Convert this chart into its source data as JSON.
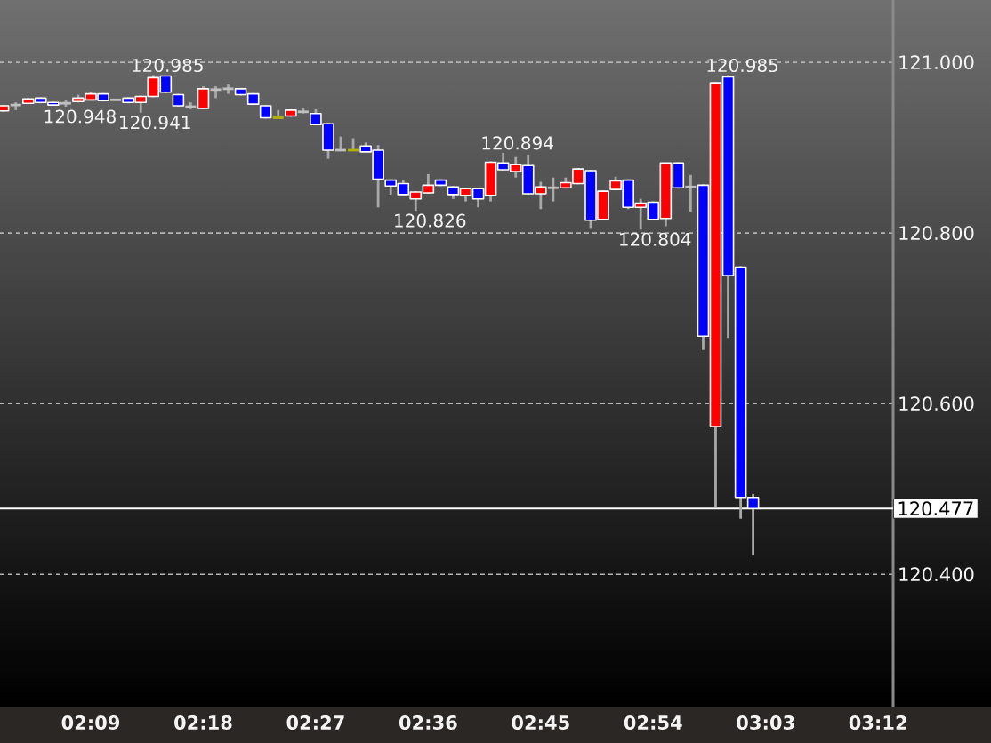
{
  "chart_data": {
    "type": "candlestick",
    "x": [
      2.0333,
      2.05,
      2.0667,
      2.0833,
      2.1,
      2.1167,
      2.1333,
      2.15,
      2.1667,
      2.1833,
      2.2,
      2.2167,
      2.2333,
      2.25,
      2.2667,
      2.2833,
      2.3,
      2.3167,
      2.3333,
      2.35,
      2.3667,
      2.3833,
      2.4,
      2.4167,
      2.4333,
      2.45,
      2.4667,
      2.4833,
      2.5,
      2.5167,
      2.5333,
      2.55,
      2.5667,
      2.5833,
      2.6,
      2.6167,
      2.6333,
      2.65,
      2.6667,
      2.6833,
      2.7,
      2.7167,
      2.7333,
      2.75,
      2.7667,
      2.7833,
      2.8,
      2.8167,
      2.8333,
      2.85,
      2.8667,
      2.8833,
      2.9,
      2.9167,
      2.9333,
      2.95,
      2.9667,
      2.9833,
      3.0,
      3.0167,
      3.0333
    ],
    "ohlc": [
      [
        120.943,
        120.95,
        120.942,
        120.949
      ],
      [
        120.95,
        120.953,
        120.944,
        120.95
      ],
      [
        120.952,
        120.958,
        120.951,
        120.957
      ],
      [
        120.958,
        120.959,
        120.952,
        120.953
      ],
      [
        120.953,
        120.954,
        120.949,
        120.95
      ],
      [
        120.952,
        120.956,
        120.948,
        120.952
      ],
      [
        120.954,
        120.962,
        120.953,
        120.958
      ],
      [
        120.956,
        120.965,
        120.955,
        120.963
      ],
      [
        120.963,
        120.964,
        120.954,
        120.955
      ],
      [
        120.956,
        120.957,
        120.955,
        120.956
      ],
      [
        120.958,
        120.959,
        120.952,
        120.953
      ],
      [
        120.953,
        120.961,
        120.941,
        120.96
      ],
      [
        120.96,
        120.985,
        120.959,
        120.982
      ],
      [
        120.984,
        120.984,
        120.964,
        120.965
      ],
      [
        120.962,
        120.963,
        120.948,
        120.949
      ],
      [
        120.948,
        120.953,
        120.945,
        120.948
      ],
      [
        120.946,
        120.972,
        120.945,
        120.969
      ],
      [
        120.968,
        120.972,
        120.958,
        120.968
      ],
      [
        120.969,
        120.974,
        120.963,
        120.969
      ],
      [
        120.969,
        120.97,
        120.961,
        120.962
      ],
      [
        120.963,
        120.964,
        120.95,
        120.951
      ],
      [
        120.949,
        120.95,
        120.934,
        120.935
      ],
      [
        120.935,
        120.944,
        120.935,
        120.935
      ],
      [
        120.937,
        120.945,
        120.936,
        120.944
      ],
      [
        120.942,
        120.946,
        120.94,
        120.942
      ],
      [
        120.94,
        120.945,
        120.926,
        120.927
      ],
      [
        120.928,
        120.929,
        120.887,
        120.897
      ],
      [
        120.897,
        120.913,
        120.896,
        120.897
      ],
      [
        120.897,
        120.911,
        120.897,
        120.897
      ],
      [
        120.902,
        120.906,
        120.895,
        120.895
      ],
      [
        120.897,
        120.903,
        120.83,
        120.863
      ],
      [
        120.862,
        120.863,
        120.845,
        120.855
      ],
      [
        120.858,
        120.862,
        120.844,
        120.845
      ],
      [
        120.84,
        120.849,
        120.826,
        120.848
      ],
      [
        120.847,
        120.869,
        120.846,
        120.856
      ],
      [
        120.862,
        120.863,
        120.855,
        120.856
      ],
      [
        120.854,
        120.855,
        120.84,
        120.845
      ],
      [
        120.844,
        120.853,
        120.837,
        120.852
      ],
      [
        120.852,
        120.853,
        120.83,
        120.84
      ],
      [
        120.844,
        120.884,
        120.837,
        120.883
      ],
      [
        120.882,
        120.894,
        120.873,
        120.874
      ],
      [
        120.872,
        120.889,
        120.865,
        120.88
      ],
      [
        120.879,
        120.892,
        120.845,
        120.846
      ],
      [
        120.846,
        120.86,
        120.828,
        120.854
      ],
      [
        120.853,
        120.865,
        120.837,
        120.853
      ],
      [
        120.853,
        120.865,
        120.852,
        120.859
      ],
      [
        120.858,
        120.876,
        120.857,
        120.875
      ],
      [
        120.873,
        120.874,
        120.805,
        120.815
      ],
      [
        120.816,
        120.85,
        120.815,
        120.849
      ],
      [
        120.851,
        120.866,
        120.85,
        120.861
      ],
      [
        120.862,
        120.863,
        120.828,
        120.83
      ],
      [
        120.83,
        120.84,
        120.804,
        120.835
      ],
      [
        120.836,
        120.837,
        120.815,
        120.816
      ],
      [
        120.817,
        120.882,
        120.808,
        120.882
      ],
      [
        120.882,
        120.883,
        120.852,
        120.853
      ],
      [
        120.854,
        120.868,
        120.825,
        120.854
      ],
      [
        120.856,
        120.857,
        120.663,
        120.679
      ],
      [
        120.573,
        120.977,
        120.479,
        120.976
      ],
      [
        120.983,
        120.985,
        120.677,
        120.75
      ],
      [
        120.76,
        120.761,
        120.465,
        120.49
      ],
      [
        120.49,
        120.494,
        120.422,
        120.477
      ]
    ],
    "colors": [
      "#ff0000",
      "#c0c0c0",
      "#ff0000",
      "#0000ff",
      "#0000ff",
      "#c0c0c0",
      "#ff0000",
      "#ff0000",
      "#0000ff",
      "#c0c0c0",
      "#0000ff",
      "#ff0000",
      "#ff0000",
      "#0000ff",
      "#0000ff",
      "#c0c0c0",
      "#ff0000",
      "#c0c0c0",
      "#c0c0c0",
      "#0000ff",
      "#0000ff",
      "#0000ff",
      "#b4b400",
      "#ff0000",
      "#c0c0c0",
      "#0000ff",
      "#0000ff",
      "#c0c0c0",
      "#b4b400",
      "#0000ff",
      "#0000ff",
      "#0000ff",
      "#0000ff",
      "#ff0000",
      "#ff0000",
      "#0000ff",
      "#0000ff",
      "#ff0000",
      "#0000ff",
      "#ff0000",
      "#0000ff",
      "#ff0000",
      "#0000ff",
      "#ff0000",
      "#c0c0c0",
      "#ff0000",
      "#ff0000",
      "#0000ff",
      "#ff0000",
      "#ff0000",
      "#0000ff",
      "#ff0000",
      "#0000ff",
      "#ff0000",
      "#0000ff",
      "#c0c0c0",
      "#0000ff",
      "#ff0000",
      "#0000ff",
      "#0000ff",
      "#0000ff"
    ],
    "xlim": [
      2.029,
      3.22
    ],
    "xticks": [
      {
        "value": 2.15,
        "label": "02:09"
      },
      {
        "value": 2.3,
        "label": "02:18"
      },
      {
        "value": 2.45,
        "label": "02:27"
      },
      {
        "value": 2.6,
        "label": "02:36"
      },
      {
        "value": 2.75,
        "label": "02:45"
      },
      {
        "value": 2.9,
        "label": "02:54"
      },
      {
        "value": 3.05,
        "label": "03:03"
      },
      {
        "value": 3.2,
        "label": "03:12"
      }
    ],
    "ylim": [
      120.244,
      121.073
    ],
    "yticks": [
      {
        "value": 120.4,
        "label": "120.400"
      },
      {
        "value": 120.6,
        "label": "120.600"
      },
      {
        "value": 120.8,
        "label": "120.800"
      },
      {
        "value": 121.0,
        "label": "121.000"
      }
    ],
    "grid": "y",
    "ref_lines": [
      {
        "axis": "y",
        "value": 120.477,
        "label": "120.477",
        "color": "#ffffff"
      }
    ],
    "annotations": [
      {
        "text": "120.948",
        "x": 2.1167,
        "y": 120.948
      },
      {
        "text": "120.941",
        "x": 2.2167,
        "y": 120.941
      },
      {
        "text": "120.985",
        "x": 2.2333,
        "y": 120.985
      },
      {
        "text": "120.826",
        "x": 2.5833,
        "y": 120.826
      },
      {
        "text": "120.894",
        "x": 2.7,
        "y": 120.894
      },
      {
        "text": "120.804",
        "x": 2.8833,
        "y": 120.804
      },
      {
        "text": "120.985",
        "x": 3.0,
        "y": 120.985
      }
    ]
  }
}
